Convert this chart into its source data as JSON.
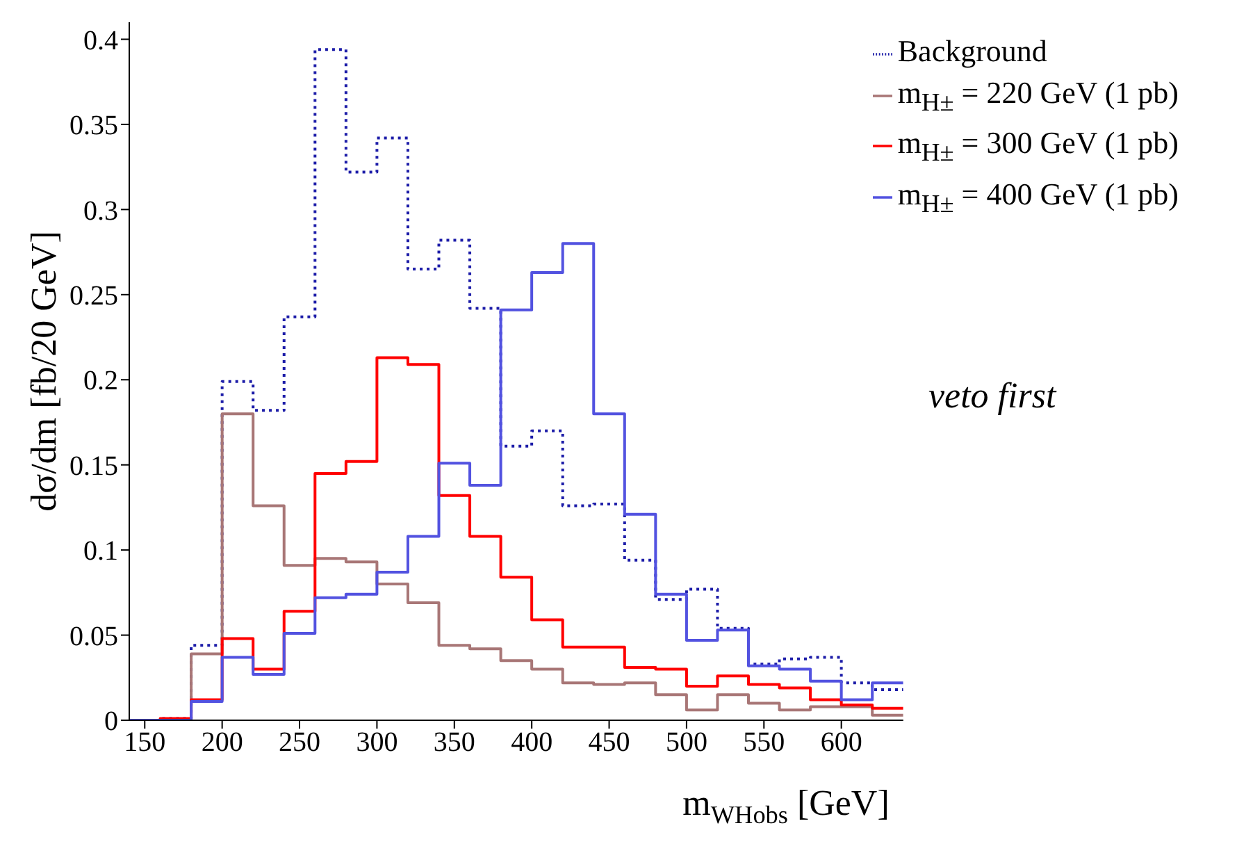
{
  "chart_data": {
    "type": "histogram",
    "xlabel": "m$_{WH}$$_{obs}$ [GeV]",
    "ylabel": "dσ/dm [fb/20 GeV]",
    "annotations": [
      "veto first"
    ],
    "bins": [
      140,
      160,
      180,
      200,
      220,
      240,
      260,
      280,
      300,
      320,
      340,
      360,
      380,
      400,
      420,
      440,
      460,
      480,
      500,
      520,
      540,
      560,
      580,
      600,
      620,
      640
    ],
    "series": [
      {
        "name": "Background",
        "color": "#1c1ca8",
        "line_style": "dotted",
        "values": [
          0,
          0.001,
          0.044,
          0.199,
          0.182,
          0.237,
          0.394,
          0.322,
          0.342,
          0.265,
          0.282,
          0.242,
          0.161,
          0.17,
          0.126,
          0.127,
          0.094,
          0.071,
          0.077,
          0.054,
          0.033,
          0.036,
          0.037,
          0.022,
          0.018
        ]
      },
      {
        "name": "m$_{H±}$ = 220 GeV (1 pb)",
        "color": "#a87676",
        "values": [
          0,
          0,
          0.039,
          0.18,
          0.126,
          0.091,
          0.095,
          0.093,
          0.08,
          0.069,
          0.044,
          0.042,
          0.035,
          0.03,
          0.022,
          0.021,
          0.022,
          0.015,
          0.006,
          0.015,
          0.01,
          0.006,
          0.008,
          0.008,
          0.003
        ]
      },
      {
        "name": "m$_{H±}$ = 300 GeV (1 pb)",
        "color": "#ff0000",
        "values": [
          0,
          0.001,
          0.012,
          0.048,
          0.03,
          0.064,
          0.145,
          0.152,
          0.213,
          0.209,
          0.132,
          0.108,
          0.084,
          0.059,
          0.043,
          0.043,
          0.031,
          0.03,
          0.02,
          0.026,
          0.021,
          0.019,
          0.012,
          0.009,
          0.007
        ]
      },
      {
        "name": "m$_{H±}$ = 400 GeV (1 pb)",
        "color": "#5252e0",
        "values": [
          0,
          0,
          0.011,
          0.037,
          0.027,
          0.051,
          0.072,
          0.074,
          0.087,
          0.108,
          0.151,
          0.138,
          0.241,
          0.263,
          0.28,
          0.18,
          0.121,
          0.074,
          0.047,
          0.053,
          0.032,
          0.03,
          0.023,
          0.012,
          0.022
        ]
      }
    ],
    "xlim": [
      140,
      640
    ],
    "xticks": [
      150,
      200,
      250,
      300,
      350,
      400,
      450,
      500,
      550,
      600
    ],
    "ylim": [
      0,
      0.41
    ],
    "yticks": [
      0,
      0.05,
      0.1,
      0.15,
      0.2,
      0.25,
      0.3,
      0.35,
      0.4
    ],
    "grid": false,
    "legend": "top right",
    "line_style": "solid"
  }
}
